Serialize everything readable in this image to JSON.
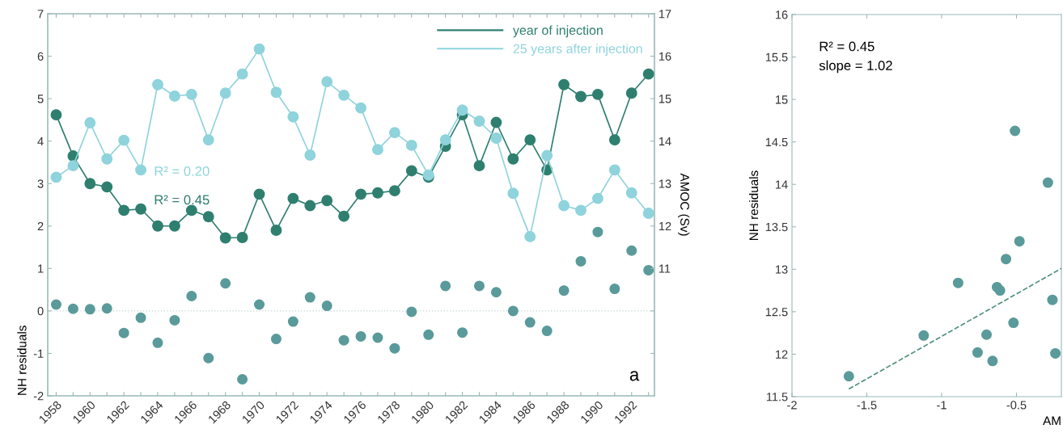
{
  "chart_data": [
    {
      "type": "line",
      "ylabel": "NH residuals",
      "y2label": "AMOC (Sv)",
      "x": [
        1958,
        1959,
        1960,
        1961,
        1962,
        1963,
        1964,
        1965,
        1966,
        1967,
        1968,
        1969,
        1970,
        1971,
        1972,
        1973,
        1974,
        1975,
        1976,
        1977,
        1978,
        1979,
        1980,
        1981,
        1982,
        1983,
        1984,
        1985,
        1986,
        1987,
        1988,
        1989,
        1990,
        1991,
        1992,
        1993
      ],
      "series": [
        {
          "name": "year of injection",
          "axis": "y2",
          "marker": "circle",
          "color": "#2f7f6f",
          "values": [
            14.62,
            13.65,
            13.0,
            12.92,
            12.37,
            12.4,
            12.0,
            12.0,
            12.37,
            12.22,
            11.72,
            11.73,
            12.75,
            11.9,
            12.65,
            12.48,
            12.6,
            12.23,
            12.75,
            12.78,
            12.83,
            13.3,
            13.15,
            13.88,
            14.62,
            13.42,
            14.44,
            13.58,
            14.03,
            13.32,
            15.33,
            15.05,
            15.1,
            14.03,
            15.13,
            15.58
          ]
        },
        {
          "name": "25 years after injection",
          "axis": "y2",
          "marker": "circle",
          "color": "#8fd3dc",
          "values": [
            13.15,
            13.42,
            14.43,
            13.58,
            14.02,
            13.32,
            15.33,
            15.06,
            15.1,
            14.03,
            15.13,
            15.58,
            16.17,
            15.15,
            14.57,
            13.67,
            15.4,
            15.08,
            14.78,
            13.8,
            14.2,
            13.9,
            13.2,
            14.03,
            14.73,
            14.47,
            14.07,
            12.77,
            11.75,
            13.66,
            12.48,
            12.37,
            12.65,
            13.32,
            12.78,
            12.3
          ]
        },
        {
          "type": "scatter",
          "axis": "y",
          "marker": "circle",
          "color": "#5a9a9a",
          "values": [
            0.15,
            0.05,
            0.04,
            0.06,
            -0.52,
            -0.16,
            -0.75,
            -0.22,
            0.35,
            -1.11,
            0.65,
            -1.61,
            0.15,
            -0.66,
            -0.25,
            0.32,
            0.12,
            -0.69,
            -0.6,
            -0.63,
            -0.88,
            -0.02,
            -0.56,
            0.59,
            -0.51,
            0.59,
            0.44,
            0.0,
            -0.27,
            -0.47,
            0.48,
            1.17,
            1.86,
            0.52,
            1.42,
            0.96
          ]
        }
      ],
      "xlim": [
        1957.5,
        1993.35
      ],
      "xticks": [
        1958,
        {
          "value": 1959,
          "label": null
        },
        1960,
        {
          "value": 1961,
          "label": null
        },
        1962,
        {
          "value": 1963,
          "label": null
        },
        1964,
        {
          "value": 1965,
          "label": null
        },
        1966,
        {
          "value": 1967,
          "label": null
        },
        1968,
        {
          "value": 1969,
          "label": null
        },
        1970,
        {
          "value": 1971,
          "label": null
        },
        1972,
        {
          "value": 1973,
          "label": null
        },
        1974,
        {
          "value": 1975,
          "label": null
        },
        1976,
        {
          "value": 1977,
          "label": null
        },
        1978,
        {
          "value": 1979,
          "label": null
        },
        1980,
        {
          "value": 1981,
          "label": null
        },
        1982,
        {
          "value": 1983,
          "label": null
        },
        1984,
        {
          "value": 1985,
          "label": null
        },
        1986,
        {
          "value": 1987,
          "label": null
        },
        1988,
        {
          "value": 1989,
          "label": null
        },
        1990,
        {
          "value": 1991,
          "label": null
        },
        1992,
        {
          "value": 1993,
          "label": null
        }
      ],
      "ylim": [
        -2,
        7
      ],
      "yticks": [
        -2,
        -1,
        0,
        1,
        2,
        3,
        4,
        5,
        6,
        7
      ],
      "y2lim": [
        8,
        17
      ],
      "y2ticks": [
        {
          "value": 9,
          "label": null
        },
        {
          "value": 10,
          "label": null
        },
        11,
        12,
        13,
        14,
        15,
        16,
        17
      ],
      "ref_lines": [
        {
          "axis": "y",
          "value": 0,
          "color": "#c8d8d8",
          "line_style": "dotted"
        }
      ],
      "annotations": [
        "R² = 0.20",
        "R² = 0.45",
        "a"
      ],
      "legend": "top right",
      "grid": false
    },
    {
      "type": "scatter",
      "ylabel": "NH residuals",
      "xlabel": "AM",
      "series": [
        {
          "marker": "circle",
          "color": "#5a9a9a",
          "x": [
            -1.62,
            -1.12,
            -0.89,
            -0.76,
            -0.7,
            -0.66,
            -0.63,
            -0.61,
            -0.57,
            -0.51,
            -0.52,
            -0.48,
            -0.29,
            -0.26,
            -0.24
          ],
          "values": [
            11.74,
            12.22,
            12.84,
            12.02,
            12.23,
            11.92,
            12.79,
            12.75,
            13.12,
            14.63,
            12.37,
            13.33,
            14.02,
            12.64,
            12.01
          ]
        },
        {
          "type": "line",
          "line_style": "dashed",
          "color": "#4f8f7f",
          "x": [
            -1.62,
            -0.2
          ],
          "values": [
            11.59,
            13.01
          ]
        }
      ],
      "xlim": [
        -2,
        -0.2
      ],
      "xticks": [
        -2,
        -1.5,
        -1,
        -0.5
      ],
      "ylim": [
        11.5,
        16
      ],
      "yticks": [
        11.5,
        12,
        12.5,
        13,
        13.5,
        14,
        14.5,
        15,
        15.5,
        16
      ],
      "annotations": [
        "R² = 0.45",
        "slope = 1.02"
      ],
      "grid": false
    }
  ]
}
